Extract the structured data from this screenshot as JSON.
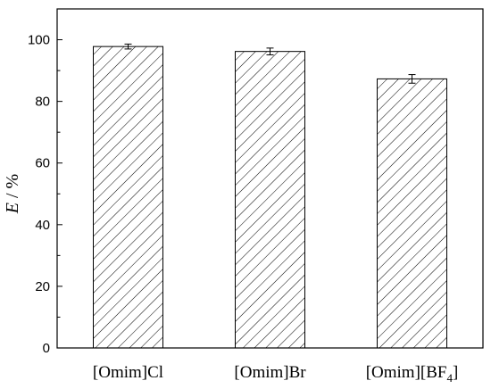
{
  "chart_data": {
    "type": "bar",
    "categories": [
      "[Omim]Cl",
      "[Omim]Br",
      "[Omim][BF4]"
    ],
    "category_labels": [
      {
        "base": "[Omim]Cl",
        "sub": ""
      },
      {
        "base": "[Omim]Br",
        "sub": ""
      },
      {
        "base": "[Omim][BF",
        "sub": "4",
        "tail": "]"
      }
    ],
    "values": [
      97.8,
      96.2,
      87.3
    ],
    "errors": [
      0.8,
      1.1,
      1.4
    ],
    "ylabel_italic": "E",
    "ylabel_rest": " / %",
    "xlabel": "",
    "ylim": [
      0,
      110
    ],
    "yticks": [
      0,
      20,
      40,
      60,
      80,
      100
    ],
    "grid": false,
    "bar_fill": "hatched",
    "colors": {
      "bar_stroke": "#000000",
      "hatch": "#000000",
      "axis": "#000000"
    }
  }
}
